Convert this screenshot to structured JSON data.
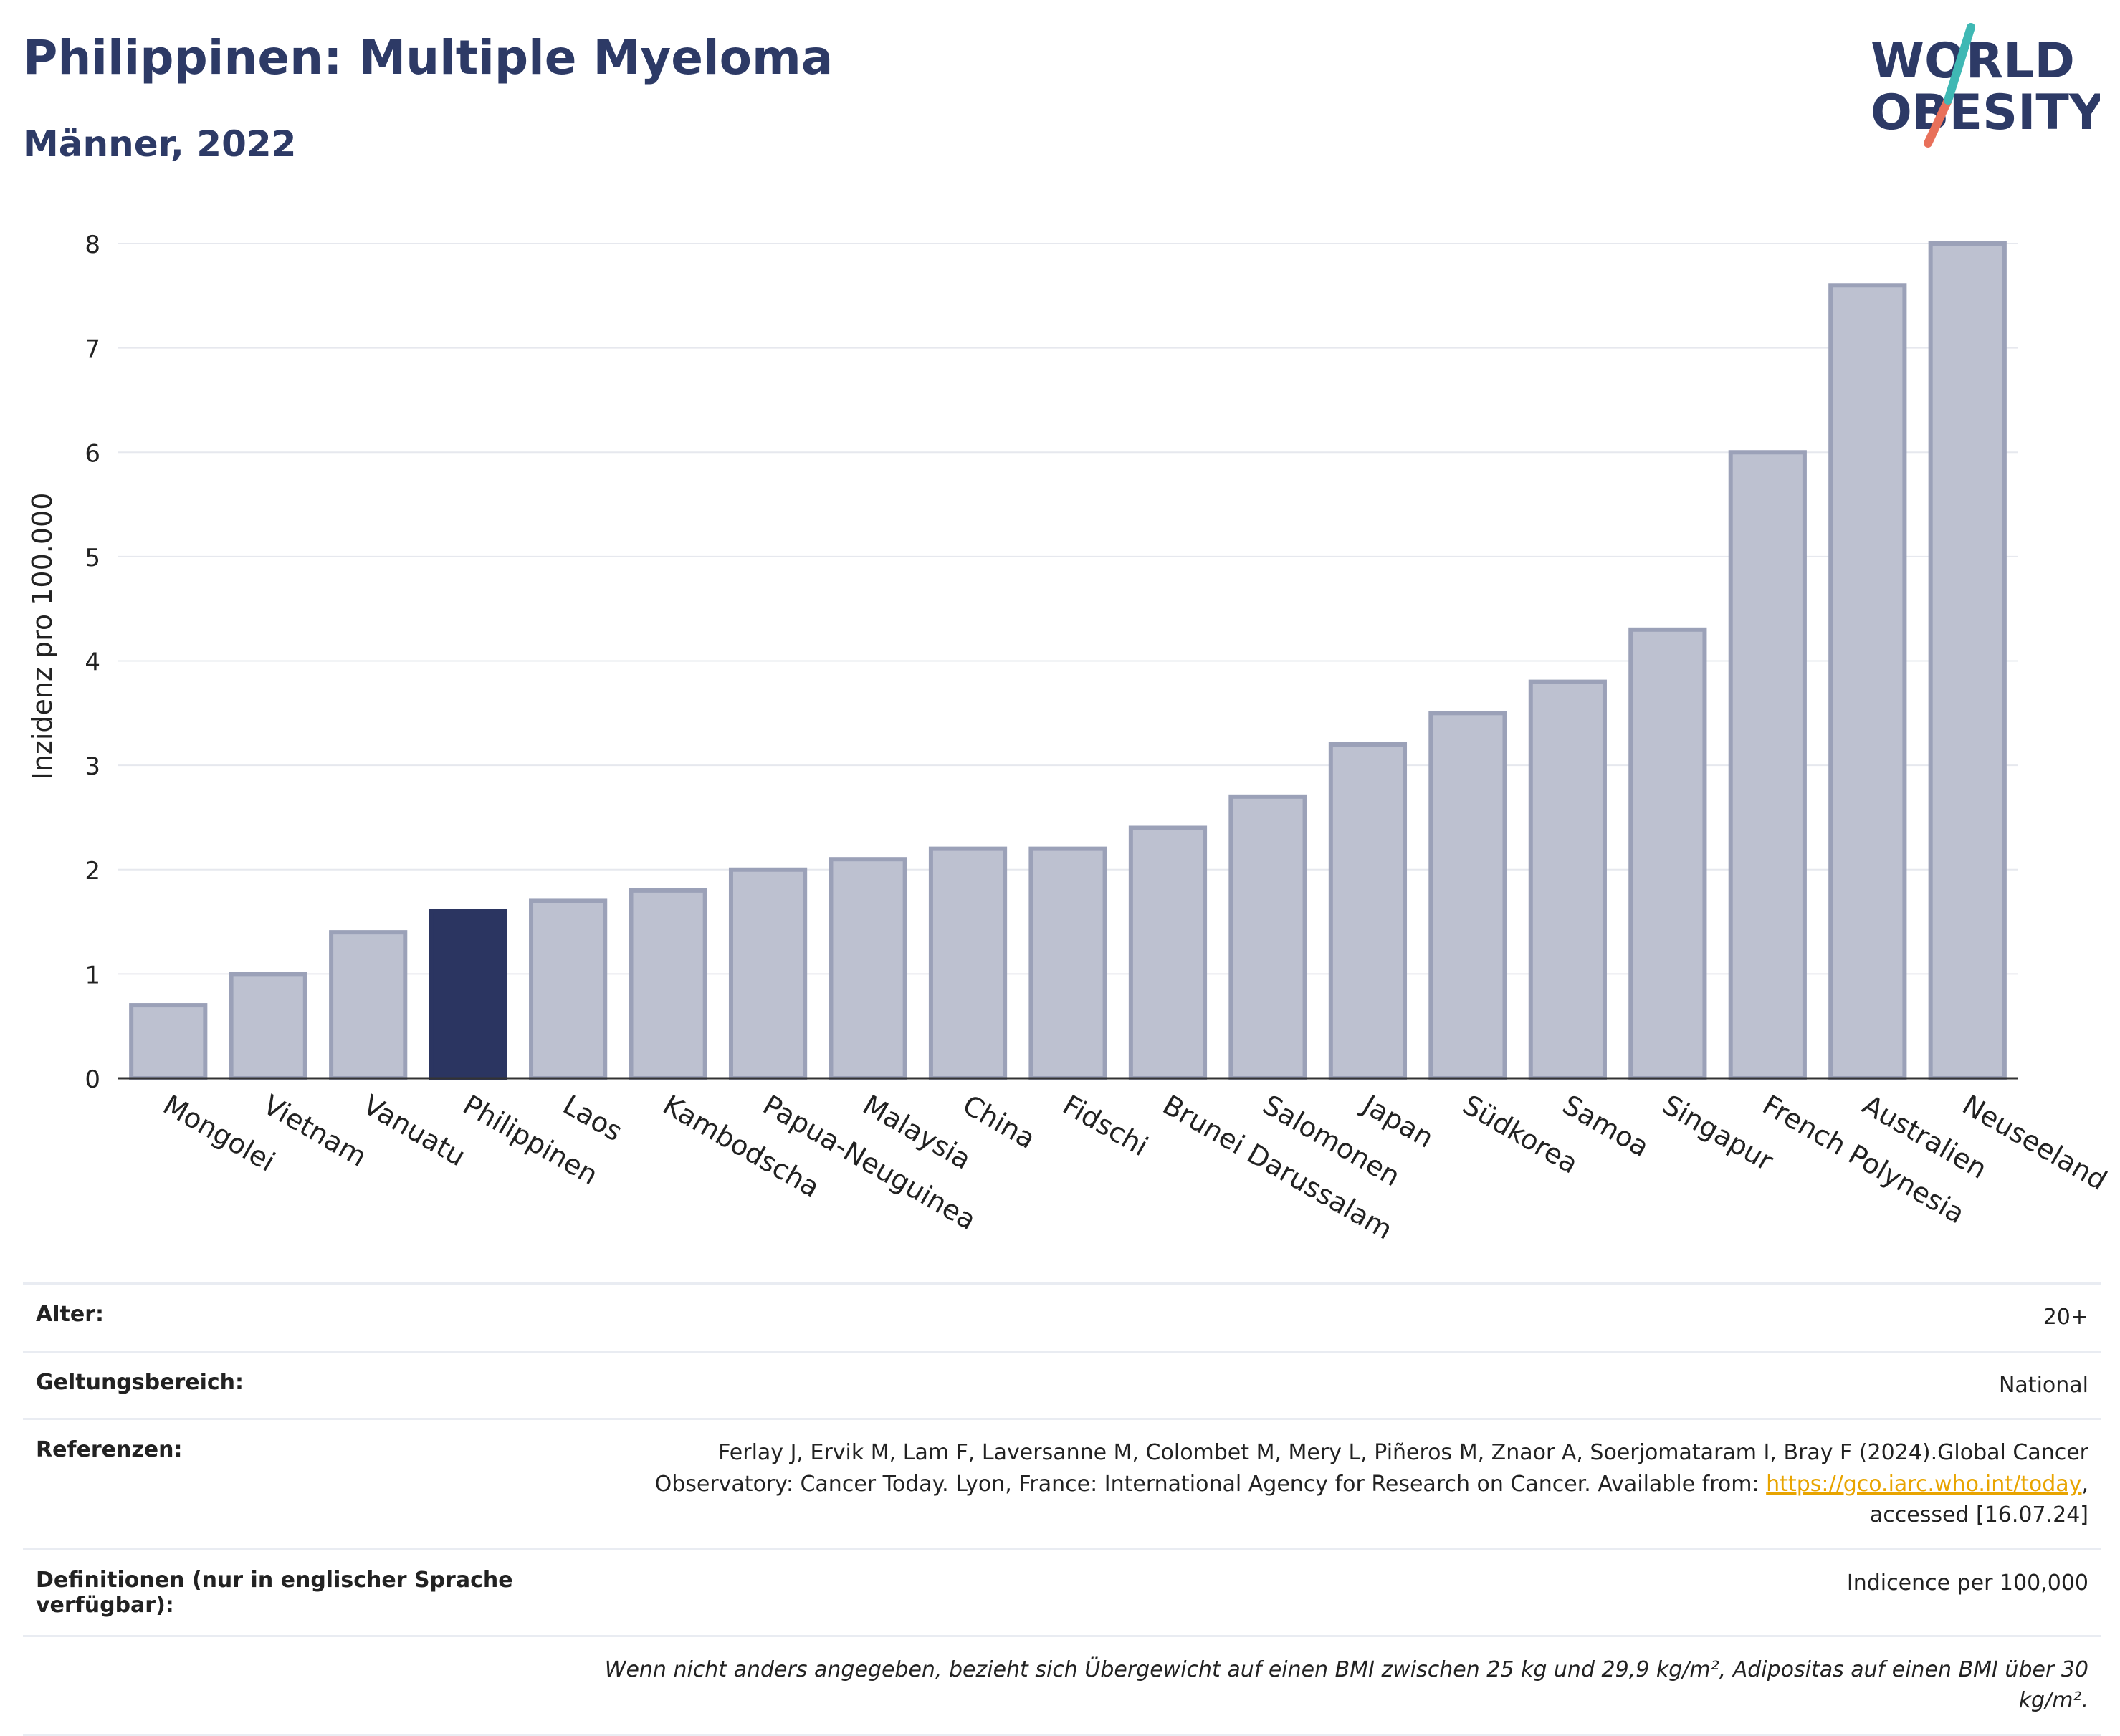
{
  "header": {
    "title": "Philippinen: Multiple Myeloma",
    "subtitle": "Männer, 2022"
  },
  "logo": {
    "line1": "WORLD",
    "line2": "OBESITY"
  },
  "colors": {
    "title": "#2d3a66",
    "bar": "#bdc1d0",
    "bar_stroke": "#9ba1b8",
    "highlight": "#2b3561",
    "link": "#e8a400"
  },
  "chart_data": {
    "type": "bar",
    "ylabel": "Inzidenz pro 100.000",
    "ylim": [
      0,
      8
    ],
    "yticks": [
      0,
      1,
      2,
      3,
      4,
      5,
      6,
      7,
      8
    ],
    "grid": true,
    "highlight": "Philippinen",
    "categories": [
      "Mongolei",
      "Vietnam",
      "Vanuatu",
      "Philippinen",
      "Laos",
      "Kambodscha",
      "Papua-Neuguinea",
      "Malaysia",
      "China",
      "Fidschi",
      "Brunei Darussalam",
      "Salomonen",
      "Japan",
      "Südkorea",
      "Samoa",
      "Singapur",
      "French Polynesia",
      "Australien",
      "Neuseeland"
    ],
    "values": [
      0.7,
      1.0,
      1.4,
      1.6,
      1.7,
      1.8,
      2.0,
      2.1,
      2.2,
      2.2,
      2.4,
      2.7,
      3.2,
      3.5,
      3.8,
      4.3,
      6.0,
      7.6,
      8.0
    ]
  },
  "meta": {
    "age_label": "Alter:",
    "age_value": "20+",
    "scope_label": "Geltungsbereich:",
    "scope_value": "National",
    "ref_label": "Referenzen:",
    "ref_text_1": "Ferlay J, Ervik M, Lam F, Laversanne M, Colombet M, Mery L, Piñeros M, Znaor A, Soerjomataram I, Bray F (2024).Global Cancer Observatory: Cancer Today. Lyon, France: International Agency for Research on Cancer. Available from: ",
    "ref_link": "https://gco.iarc.who.int/today",
    "ref_text_2": ", accessed [16.07.24]",
    "def_label": "Definitionen (nur in englischer Sprache verfügbar):",
    "def_value": "Indicence per 100,000",
    "note": "Wenn nicht anders angegeben, bezieht sich Übergewicht auf einen BMI zwischen 25 kg und 29,9 kg/m², Adipositas auf einen BMI über 30 kg/m²."
  }
}
